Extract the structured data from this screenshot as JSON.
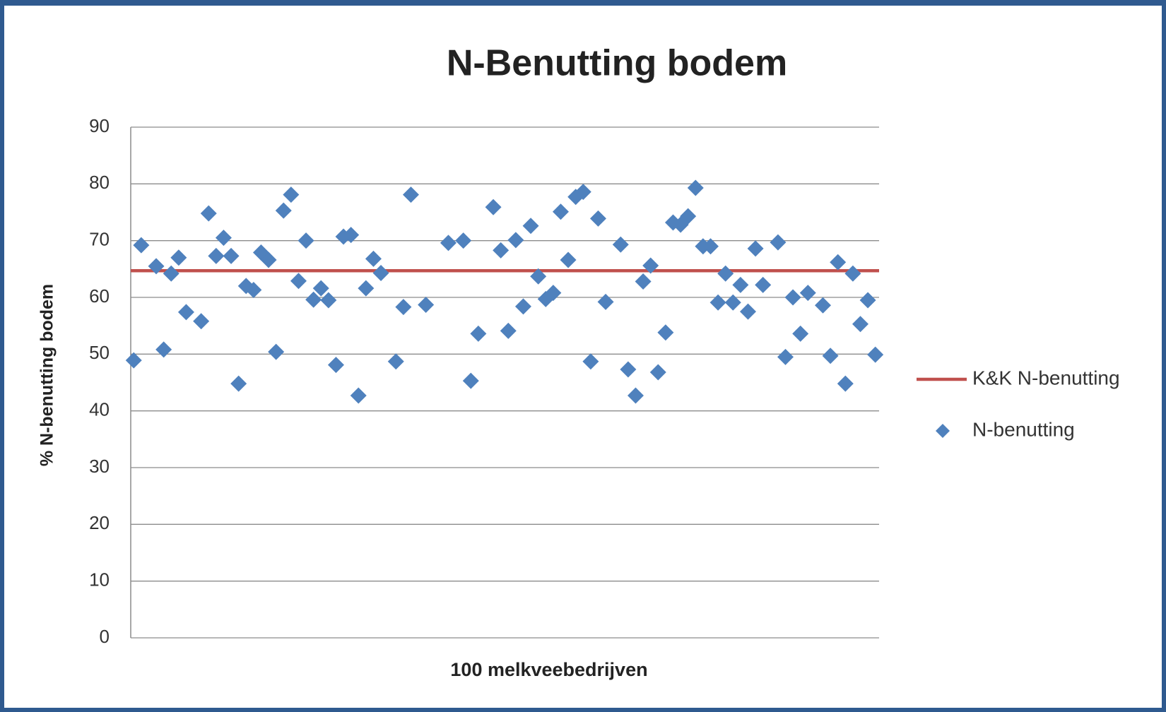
{
  "chart_data": {
    "type": "scatter",
    "title": "N-Benutting bodem",
    "ylabel": "% N-benutting bodem",
    "xlabel": "100 melkveebedrijven",
    "ylim": [
      0,
      90
    ],
    "yticks": [
      0,
      10,
      20,
      30,
      40,
      50,
      60,
      70,
      80,
      90
    ],
    "xlim": [
      0.6,
      100.5
    ],
    "grid": true,
    "legend": "right",
    "reference_lines": [
      {
        "name": "K&K N-benutting",
        "value": 64.7,
        "color": "#c0504d"
      }
    ],
    "series": [
      {
        "name": "N-benutting",
        "color": "#4f81bd",
        "x": [
          1,
          2,
          4,
          5,
          6,
          7,
          8,
          10,
          11,
          12,
          13,
          14,
          15,
          16,
          17,
          18,
          19,
          20,
          21,
          22,
          23,
          24,
          25,
          26,
          27,
          28,
          29,
          30,
          31,
          32,
          33,
          34,
          36,
          37,
          38,
          40,
          43,
          45,
          46,
          47,
          49,
          50,
          51,
          52,
          53,
          54,
          55,
          56,
          57,
          58,
          59,
          60,
          61,
          62,
          63,
          64,
          66,
          67,
          68,
          69,
          70,
          71,
          72,
          73,
          74,
          75,
          76,
          77,
          78,
          79,
          80,
          81,
          82,
          83,
          84,
          85,
          87,
          88,
          89,
          90,
          91,
          93,
          94,
          95,
          96,
          97,
          98,
          99,
          100
        ],
        "values": [
          48.9,
          69.2,
          65.5,
          50.8,
          64.2,
          67.0,
          57.4,
          55.8,
          74.8,
          67.3,
          70.5,
          67.3,
          44.8,
          62.0,
          61.3,
          67.9,
          66.6,
          50.4,
          75.3,
          78.1,
          62.9,
          70.0,
          59.6,
          61.6,
          59.5,
          48.1,
          70.7,
          71.0,
          42.7,
          61.6,
          66.8,
          64.3,
          48.7,
          58.3,
          78.1,
          58.7,
          69.6,
          70.0,
          45.3,
          53.6,
          75.9,
          68.3,
          54.1,
          70.1,
          58.4,
          72.6,
          63.7,
          59.7,
          60.8,
          75.1,
          66.6,
          77.7,
          78.6,
          48.7,
          73.9,
          59.2,
          69.3,
          47.3,
          42.7,
          62.8,
          65.6,
          46.8,
          53.8,
          73.2,
          72.8,
          74.3,
          79.3,
          69.0,
          69.0,
          59.1,
          64.2,
          59.1,
          62.2,
          57.5,
          68.6,
          62.2,
          69.7,
          49.5,
          60.0,
          53.6,
          60.8,
          58.6,
          49.7,
          66.2,
          44.8,
          64.2,
          55.3,
          59.5,
          49.9
        ]
      }
    ]
  }
}
